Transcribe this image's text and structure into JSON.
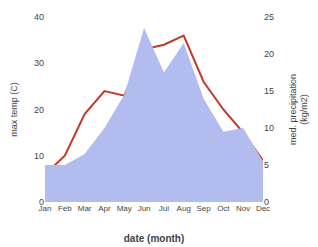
{
  "chart_data": {
    "type": "line",
    "xlabel": "date (month)",
    "ylabel": "max temp (C)",
    "y2label": "med. precipitation\n(kg/m2)",
    "categories": [
      "Jan",
      "Feb",
      "Mar",
      "Apr",
      "May",
      "Jun",
      "Jul",
      "Aug",
      "Sep",
      "Oct",
      "Nov",
      "Dec"
    ],
    "series": [
      {
        "type": "area",
        "axis": "y2",
        "color": "#b3bcee",
        "values": [
          5,
          5,
          6.5,
          10,
          14.5,
          23.5,
          17.5,
          21.5,
          14,
          9.5,
          10,
          5.5
        ]
      },
      {
        "type": "line",
        "axis": "y",
        "color": "#c0392b",
        "values": [
          6,
          10,
          19,
          24,
          23,
          33,
          34,
          36,
          26,
          20,
          15,
          9
        ]
      }
    ],
    "ylim": [
      0,
      40
    ],
    "yticks": [
      0,
      10,
      20,
      30,
      40
    ],
    "y2lim": [
      0,
      25
    ],
    "y2ticks": [
      0,
      5,
      10,
      15,
      20,
      25
    ],
    "grid": false
  }
}
